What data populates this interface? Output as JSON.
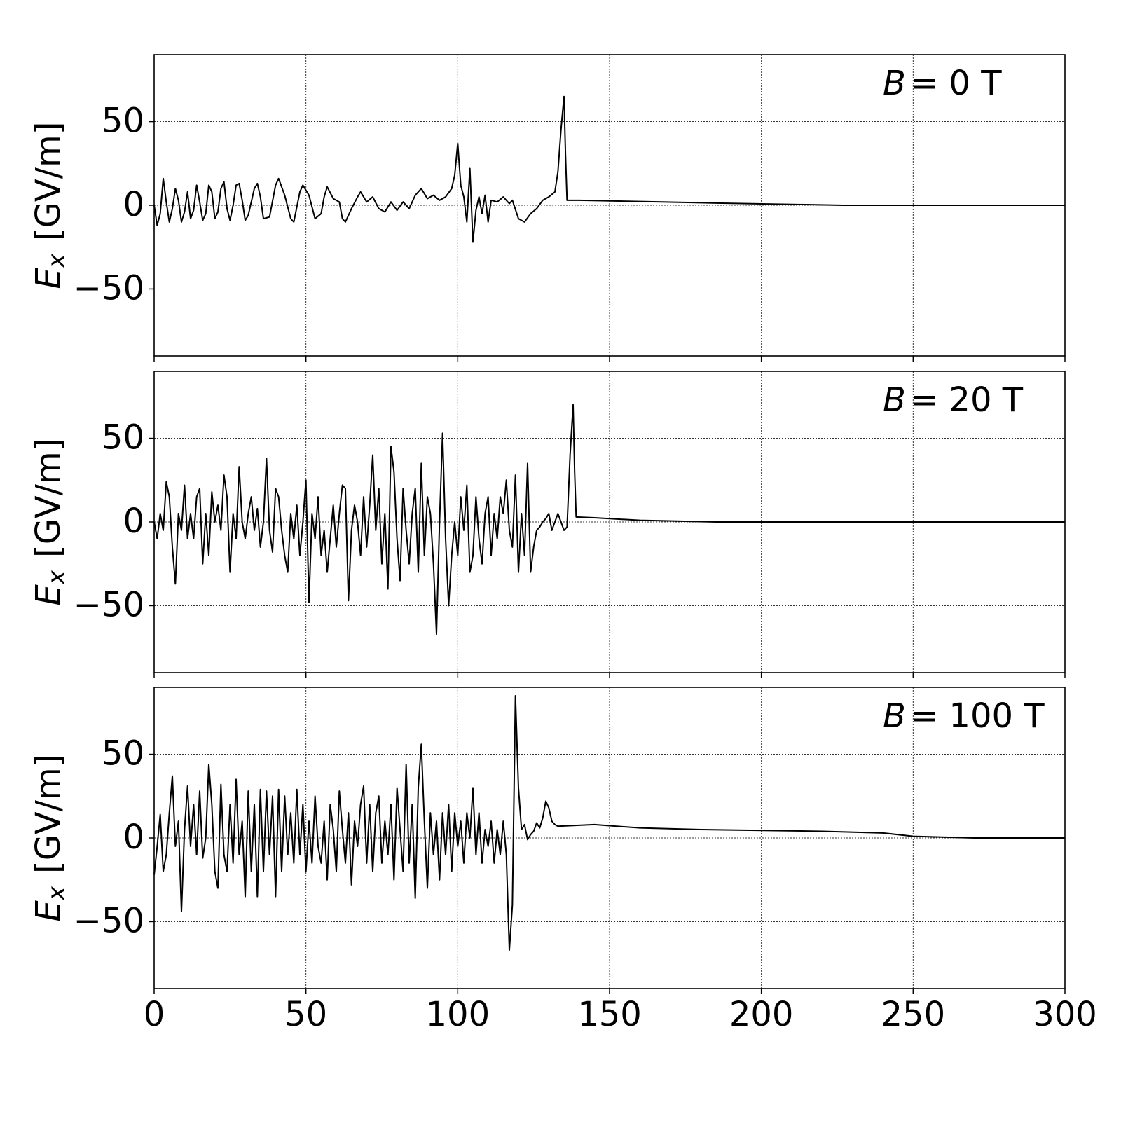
{
  "chart_data": [
    {
      "type": "line",
      "annotation": {
        "symbol": "B",
        "text": "= 0 T"
      },
      "ylabel": {
        "symbol": "E",
        "subscript": "x",
        "unit": "[GV/m]"
      },
      "xlim": [
        0,
        300
      ],
      "xticks": [
        0,
        50,
        100,
        150,
        200,
        250,
        300
      ],
      "ylim": [
        -90,
        90
      ],
      "yticks": [
        {
          "value": -50,
          "label": "−50"
        },
        0,
        50
      ],
      "grid": true,
      "color": "#000000",
      "x": [
        0,
        1,
        2,
        3,
        4,
        5,
        6,
        7,
        8,
        9,
        10,
        11,
        12,
        13,
        14,
        15,
        16,
        17,
        18,
        19,
        20,
        21,
        22,
        23,
        24,
        25,
        26,
        27,
        28,
        29,
        30,
        31,
        33,
        34,
        35,
        36,
        38,
        40,
        41,
        43,
        45,
        46,
        48,
        49,
        51,
        53,
        55,
        56,
        57,
        59,
        61,
        62,
        63,
        65,
        67,
        68,
        70,
        72,
        74,
        76,
        78,
        80,
        82,
        84,
        86,
        88,
        90,
        92,
        94,
        96,
        98,
        99,
        100,
        101,
        102,
        103,
        104,
        105,
        106,
        107,
        108,
        109,
        110,
        111,
        113,
        115,
        117,
        118,
        120,
        122,
        124,
        126,
        128,
        130,
        132,
        133,
        134,
        135,
        135.5,
        136,
        140,
        180,
        227,
        300
      ],
      "values": [
        0,
        -12,
        -5,
        16,
        2,
        -10,
        -2,
        10,
        3,
        -10,
        -4,
        8,
        -8,
        -3,
        12,
        2,
        -9,
        -5,
        12,
        8,
        -8,
        -4,
        10,
        14,
        -2,
        -9,
        0,
        12,
        13,
        3,
        -9,
        -6,
        10,
        13,
        5,
        -8,
        -7,
        12,
        16,
        6,
        -8,
        -10,
        8,
        12,
        6,
        -8,
        -5,
        5,
        11,
        4,
        2,
        -8,
        -10,
        -2,
        5,
        8,
        2,
        5,
        -2,
        -4,
        2,
        -3,
        2,
        -2,
        6,
        10,
        4,
        6,
        3,
        5,
        10,
        18,
        37,
        12,
        5,
        -10,
        22,
        -22,
        -3,
        5,
        -5,
        6,
        -10,
        3,
        2,
        5,
        1,
        3,
        -8,
        -10,
        -5,
        -2,
        3,
        5,
        8,
        20,
        45,
        65,
        30,
        3,
        3,
        1.5,
        0,
        0
      ]
    },
    {
      "type": "line",
      "annotation": {
        "symbol": "B",
        "text": "= 20 T"
      },
      "ylabel": {
        "symbol": "E",
        "subscript": "x",
        "unit": "[GV/m]"
      },
      "xlim": [
        0,
        300
      ],
      "xticks": [
        0,
        50,
        100,
        150,
        200,
        250,
        300
      ],
      "ylim": [
        -90,
        90
      ],
      "yticks": [
        {
          "value": -50,
          "label": "−50"
        },
        0,
        50
      ],
      "grid": true,
      "color": "#000000",
      "x": [
        0,
        1,
        2,
        3,
        4,
        5,
        6,
        7,
        8,
        9,
        10,
        11,
        12,
        13,
        14,
        15,
        16,
        17,
        18,
        19,
        20,
        21,
        22,
        23,
        24,
        25,
        26,
        27,
        28,
        29,
        30,
        31,
        32,
        33,
        34,
        35,
        36,
        37,
        38,
        39,
        40,
        41,
        42,
        43,
        44,
        45,
        46,
        47,
        48,
        49,
        50,
        51,
        52,
        53,
        54,
        55,
        56,
        57,
        58,
        59,
        60,
        61,
        62,
        63,
        64,
        65,
        66,
        67,
        68,
        69,
        70,
        71,
        72,
        73,
        74,
        75,
        76,
        77,
        78,
        79,
        80,
        81,
        82,
        83,
        84,
        85,
        86,
        87,
        88,
        89,
        90,
        91,
        92,
        93,
        94,
        95,
        96,
        97,
        98,
        99,
        100,
        101,
        102,
        103,
        104,
        105,
        106,
        107,
        108,
        109,
        110,
        111,
        112,
        113,
        114,
        115,
        116,
        117,
        118,
        119,
        120,
        121,
        122,
        123,
        124,
        125,
        126,
        127,
        128,
        129,
        130,
        131,
        132,
        133,
        134,
        135,
        136,
        137,
        138,
        138.5,
        139,
        145,
        160,
        185,
        300
      ],
      "values": [
        0,
        -10,
        5,
        -5,
        24,
        15,
        -15,
        -37,
        5,
        -5,
        22,
        -10,
        5,
        -10,
        15,
        20,
        -25,
        5,
        -20,
        18,
        0,
        10,
        -5,
        28,
        15,
        -30,
        5,
        -10,
        33,
        0,
        -10,
        5,
        15,
        -5,
        8,
        -15,
        0,
        38,
        -5,
        -18,
        20,
        15,
        -5,
        -20,
        -30,
        5,
        -10,
        10,
        -20,
        0,
        25,
        -48,
        5,
        -10,
        15,
        -20,
        -5,
        -30,
        -10,
        10,
        -15,
        5,
        22,
        20,
        -47,
        -5,
        10,
        0,
        -20,
        15,
        -15,
        10,
        40,
        -5,
        20,
        -25,
        5,
        -40,
        45,
        30,
        -10,
        -35,
        20,
        -5,
        -25,
        5,
        20,
        -30,
        35,
        -20,
        15,
        5,
        -25,
        -67,
        0,
        53,
        -10,
        -50,
        -20,
        0,
        -20,
        15,
        -5,
        22,
        -30,
        -20,
        15,
        -10,
        -25,
        5,
        15,
        -20,
        5,
        -10,
        15,
        5,
        25,
        -5,
        -15,
        28,
        -30,
        5,
        -20,
        35,
        -30,
        -15,
        -5,
        -3,
        0,
        2,
        5,
        -5,
        0,
        5,
        0,
        -5,
        -3,
        40,
        70,
        30,
        3,
        2.5,
        1,
        0,
        0
      ]
    },
    {
      "type": "line",
      "annotation": {
        "symbol": "B",
        "text": "= 100 T"
      },
      "ylabel": {
        "symbol": "E",
        "subscript": "x",
        "unit": "[GV/m]"
      },
      "xlim": [
        0,
        300
      ],
      "xticks": [
        0,
        50,
        100,
        150,
        200,
        250,
        300
      ],
      "ylim": [
        -90,
        90
      ],
      "yticks": [
        {
          "value": -50,
          "label": "−50"
        },
        0,
        50
      ],
      "grid": true,
      "color": "#000000",
      "x": [
        0,
        1,
        2,
        3,
        4,
        5,
        6,
        7,
        8,
        9,
        10,
        11,
        12,
        13,
        14,
        15,
        16,
        17,
        18,
        19,
        20,
        21,
        22,
        23,
        24,
        25,
        26,
        27,
        28,
        29,
        30,
        31,
        32,
        33,
        34,
        35,
        36,
        37,
        38,
        39,
        40,
        41,
        42,
        43,
        44,
        45,
        46,
        47,
        48,
        49,
        50,
        51,
        52,
        53,
        54,
        55,
        56,
        57,
        58,
        59,
        60,
        61,
        62,
        63,
        64,
        65,
        66,
        67,
        68,
        69,
        70,
        71,
        72,
        73,
        74,
        75,
        76,
        77,
        78,
        79,
        80,
        81,
        82,
        83,
        84,
        85,
        86,
        87,
        88,
        89,
        90,
        91,
        92,
        93,
        94,
        95,
        96,
        97,
        98,
        99,
        100,
        101,
        102,
        103,
        104,
        105,
        106,
        107,
        108,
        109,
        110,
        111,
        112,
        113,
        114,
        115,
        116,
        117,
        118,
        119,
        120,
        121,
        122,
        123,
        124,
        125,
        126,
        127,
        128,
        129,
        130,
        131,
        132,
        133,
        145,
        160,
        180,
        220,
        240,
        250,
        270,
        300
      ],
      "values": [
        -22,
        -5,
        14,
        -20,
        -10,
        15,
        37,
        -5,
        10,
        -44,
        5,
        31,
        -5,
        20,
        -10,
        28,
        -12,
        0,
        44,
        20,
        -20,
        -30,
        32,
        -10,
        -20,
        20,
        -15,
        35,
        -10,
        10,
        -35,
        28,
        -20,
        20,
        -35,
        29,
        -20,
        28,
        -10,
        25,
        -35,
        29,
        -20,
        25,
        -10,
        15,
        -15,
        29,
        -10,
        20,
        -20,
        10,
        -15,
        25,
        -5,
        -15,
        10,
        -25,
        20,
        5,
        -20,
        28,
        5,
        -15,
        15,
        -28,
        10,
        -5,
        20,
        31,
        -15,
        20,
        -20,
        15,
        25,
        -15,
        10,
        -10,
        20,
        -25,
        30,
        5,
        -20,
        44,
        -15,
        20,
        -36,
        30,
        56,
        10,
        -30,
        15,
        -10,
        10,
        -25,
        15,
        -10,
        20,
        -20,
        15,
        -5,
        10,
        -15,
        15,
        0,
        30,
        -10,
        15,
        -15,
        5,
        -5,
        10,
        -15,
        5,
        -10,
        10,
        -10,
        -67,
        -40,
        85,
        30,
        5,
        8,
        -1,
        2,
        4,
        9,
        6,
        12,
        22,
        18,
        10,
        8,
        7,
        8,
        6,
        5,
        4,
        3,
        1,
        0,
        0
      ]
    }
  ]
}
